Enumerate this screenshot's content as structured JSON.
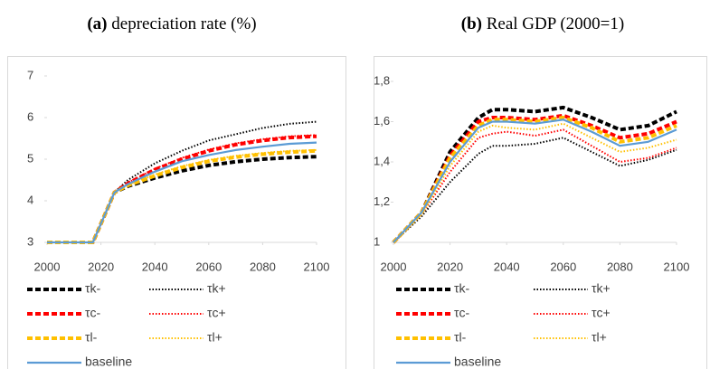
{
  "chart_data": [
    {
      "type": "line",
      "label": "(a)",
      "title": "depreciation rate (%)",
      "x": [
        2000,
        2010,
        2017,
        2025,
        2030,
        2040,
        2050,
        2060,
        2070,
        2080,
        2090,
        2100
      ],
      "xlim": [
        2000,
        2100
      ],
      "xticks": [
        2000,
        2020,
        2040,
        2060,
        2080,
        2100
      ],
      "ylim": [
        3,
        7
      ],
      "yticks": [
        3,
        4,
        5,
        6,
        7
      ],
      "grid": false,
      "series": [
        {
          "name": "τk-",
          "color": "#000000",
          "dash": "dashed",
          "values": [
            3,
            3,
            3,
            4.2,
            4.35,
            4.55,
            4.72,
            4.85,
            4.94,
            5.0,
            5.04,
            5.06
          ]
        },
        {
          "name": "τk+",
          "color": "#000000",
          "dash": "dotted",
          "values": [
            3,
            3,
            3,
            4.2,
            4.5,
            4.9,
            5.2,
            5.45,
            5.6,
            5.75,
            5.85,
            5.9
          ]
        },
        {
          "name": "τc-",
          "color": "#ff0000",
          "dash": "dashed",
          "values": [
            3,
            3,
            3,
            4.2,
            4.42,
            4.75,
            5.0,
            5.2,
            5.35,
            5.45,
            5.52,
            5.55
          ]
        },
        {
          "name": "τc+",
          "color": "#ff0000",
          "dash": "dotted",
          "values": [
            3,
            3,
            3,
            4.2,
            4.43,
            4.77,
            5.03,
            5.23,
            5.38,
            5.48,
            5.55,
            5.58
          ]
        },
        {
          "name": "τl-",
          "color": "#ffc000",
          "dash": "dashed",
          "values": [
            3,
            3,
            3,
            4.2,
            4.37,
            4.6,
            4.8,
            4.95,
            5.05,
            5.12,
            5.17,
            5.2
          ]
        },
        {
          "name": "τl+",
          "color": "#ffc000",
          "dash": "dotted",
          "values": [
            3,
            3,
            3,
            4.2,
            4.38,
            4.63,
            4.83,
            4.98,
            5.08,
            5.15,
            5.2,
            5.22
          ]
        },
        {
          "name": "baseline",
          "color": "#5b9bd5",
          "dash": "solid",
          "values": [
            3,
            3,
            3,
            4.2,
            4.4,
            4.7,
            4.95,
            5.1,
            5.22,
            5.3,
            5.37,
            5.4
          ]
        }
      ]
    },
    {
      "type": "line",
      "label": "(b)",
      "title": "Real GDP (2000=1)",
      "x": [
        2000,
        2010,
        2020,
        2030,
        2035,
        2040,
        2050,
        2060,
        2070,
        2080,
        2090,
        2100
      ],
      "xlim": [
        2000,
        2100
      ],
      "xticks": [
        2000,
        2020,
        2040,
        2060,
        2080,
        2100
      ],
      "ylim": [
        1,
        1.8
      ],
      "yticks": [
        1,
        {
          "value": 1.2,
          "label": "1,2"
        },
        {
          "value": 1.4,
          "label": "1,4"
        },
        {
          "value": 1.6,
          "label": "1,6"
        },
        {
          "value": 1.8,
          "label": "1,8"
        }
      ],
      "grid": false,
      "series": [
        {
          "name": "τk-",
          "color": "#000000",
          "dash": "dashed",
          "values": [
            1,
            1.15,
            1.45,
            1.62,
            1.66,
            1.66,
            1.65,
            1.67,
            1.62,
            1.56,
            1.58,
            1.65
          ]
        },
        {
          "name": "τk+",
          "color": "#000000",
          "dash": "dotted",
          "values": [
            1,
            1.13,
            1.3,
            1.44,
            1.48,
            1.48,
            1.49,
            1.52,
            1.45,
            1.38,
            1.41,
            1.46
          ]
        },
        {
          "name": "τc-",
          "color": "#ff0000",
          "dash": "dashed",
          "values": [
            1,
            1.15,
            1.43,
            1.6,
            1.62,
            1.62,
            1.61,
            1.63,
            1.58,
            1.52,
            1.54,
            1.6
          ]
        },
        {
          "name": "τc+",
          "color": "#ff0000",
          "dash": "dotted",
          "values": [
            1,
            1.14,
            1.35,
            1.52,
            1.54,
            1.55,
            1.53,
            1.56,
            1.48,
            1.4,
            1.42,
            1.47
          ]
        },
        {
          "name": "τl-",
          "color": "#ffc000",
          "dash": "dashed",
          "values": [
            1,
            1.15,
            1.42,
            1.58,
            1.61,
            1.61,
            1.6,
            1.62,
            1.57,
            1.5,
            1.52,
            1.58
          ]
        },
        {
          "name": "τl+",
          "color": "#ffc000",
          "dash": "dotted",
          "values": [
            1,
            1.14,
            1.38,
            1.55,
            1.58,
            1.57,
            1.56,
            1.59,
            1.52,
            1.45,
            1.47,
            1.51
          ]
        },
        {
          "name": "baseline",
          "color": "#5b9bd5",
          "dash": "solid",
          "values": [
            1,
            1.15,
            1.4,
            1.57,
            1.6,
            1.6,
            1.59,
            1.61,
            1.55,
            1.48,
            1.5,
            1.56
          ]
        }
      ]
    }
  ]
}
